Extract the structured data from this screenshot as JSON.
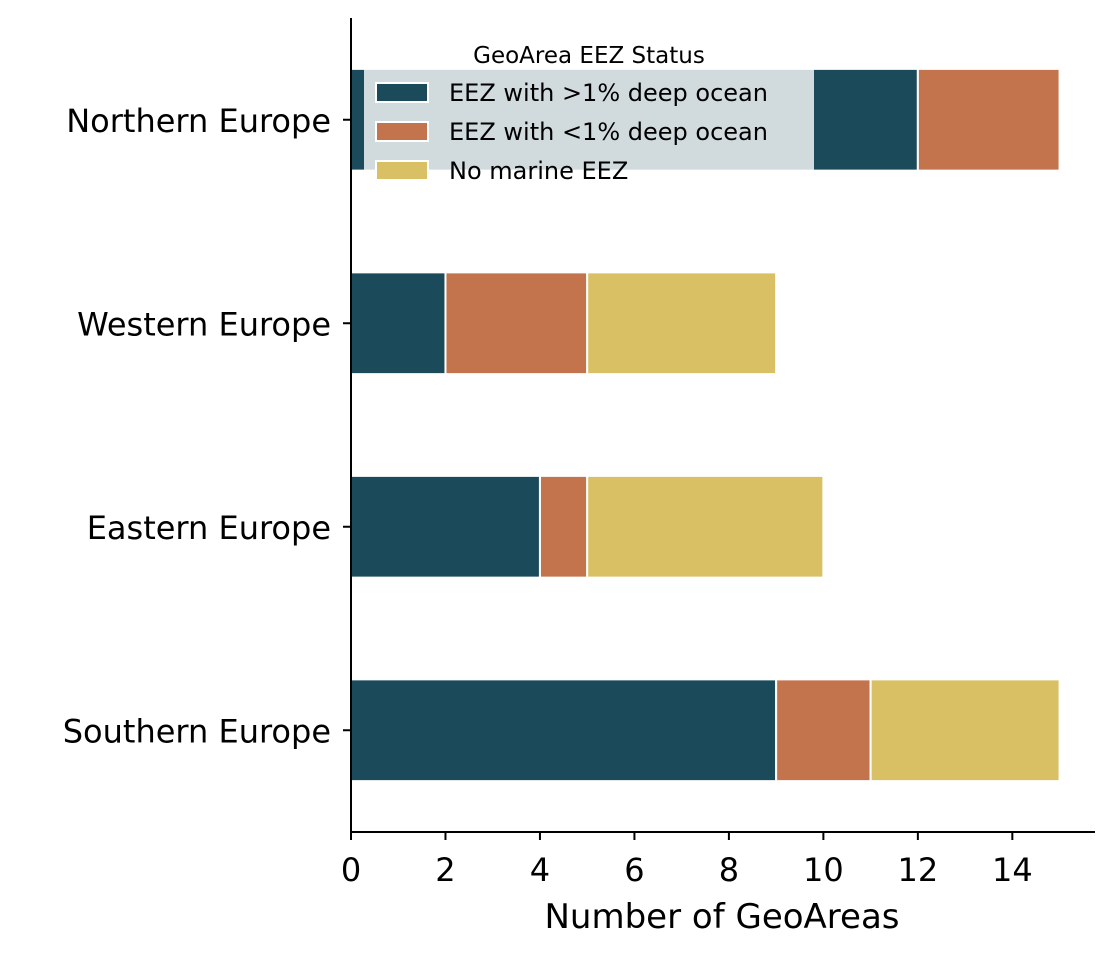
{
  "chart_data": {
    "type": "bar",
    "orientation": "horizontal",
    "stacked": true,
    "categories": [
      "Northern Europe",
      "Western Europe",
      "Eastern Europe",
      "Southern Europe"
    ],
    "series": [
      {
        "name": "EEZ with >1% deep ocean",
        "color": "#1b4a5a",
        "values": [
          12,
          2,
          4,
          9
        ]
      },
      {
        "name": "EEZ with <1% deep ocean",
        "color": "#c4744c",
        "values": [
          3,
          3,
          1,
          2
        ]
      },
      {
        "name": "No marine EEZ",
        "color": "#dac064",
        "values": [
          0,
          4,
          5,
          4
        ]
      }
    ],
    "xlabel": "Number of GeoAreas",
    "ylabel": "",
    "xlim": [
      0,
      15.75
    ],
    "xticks": [
      0,
      2,
      4,
      6,
      8,
      10,
      12,
      14
    ],
    "grid": false,
    "legend": {
      "title": "GeoArea EEZ Status",
      "placement": "top"
    }
  }
}
